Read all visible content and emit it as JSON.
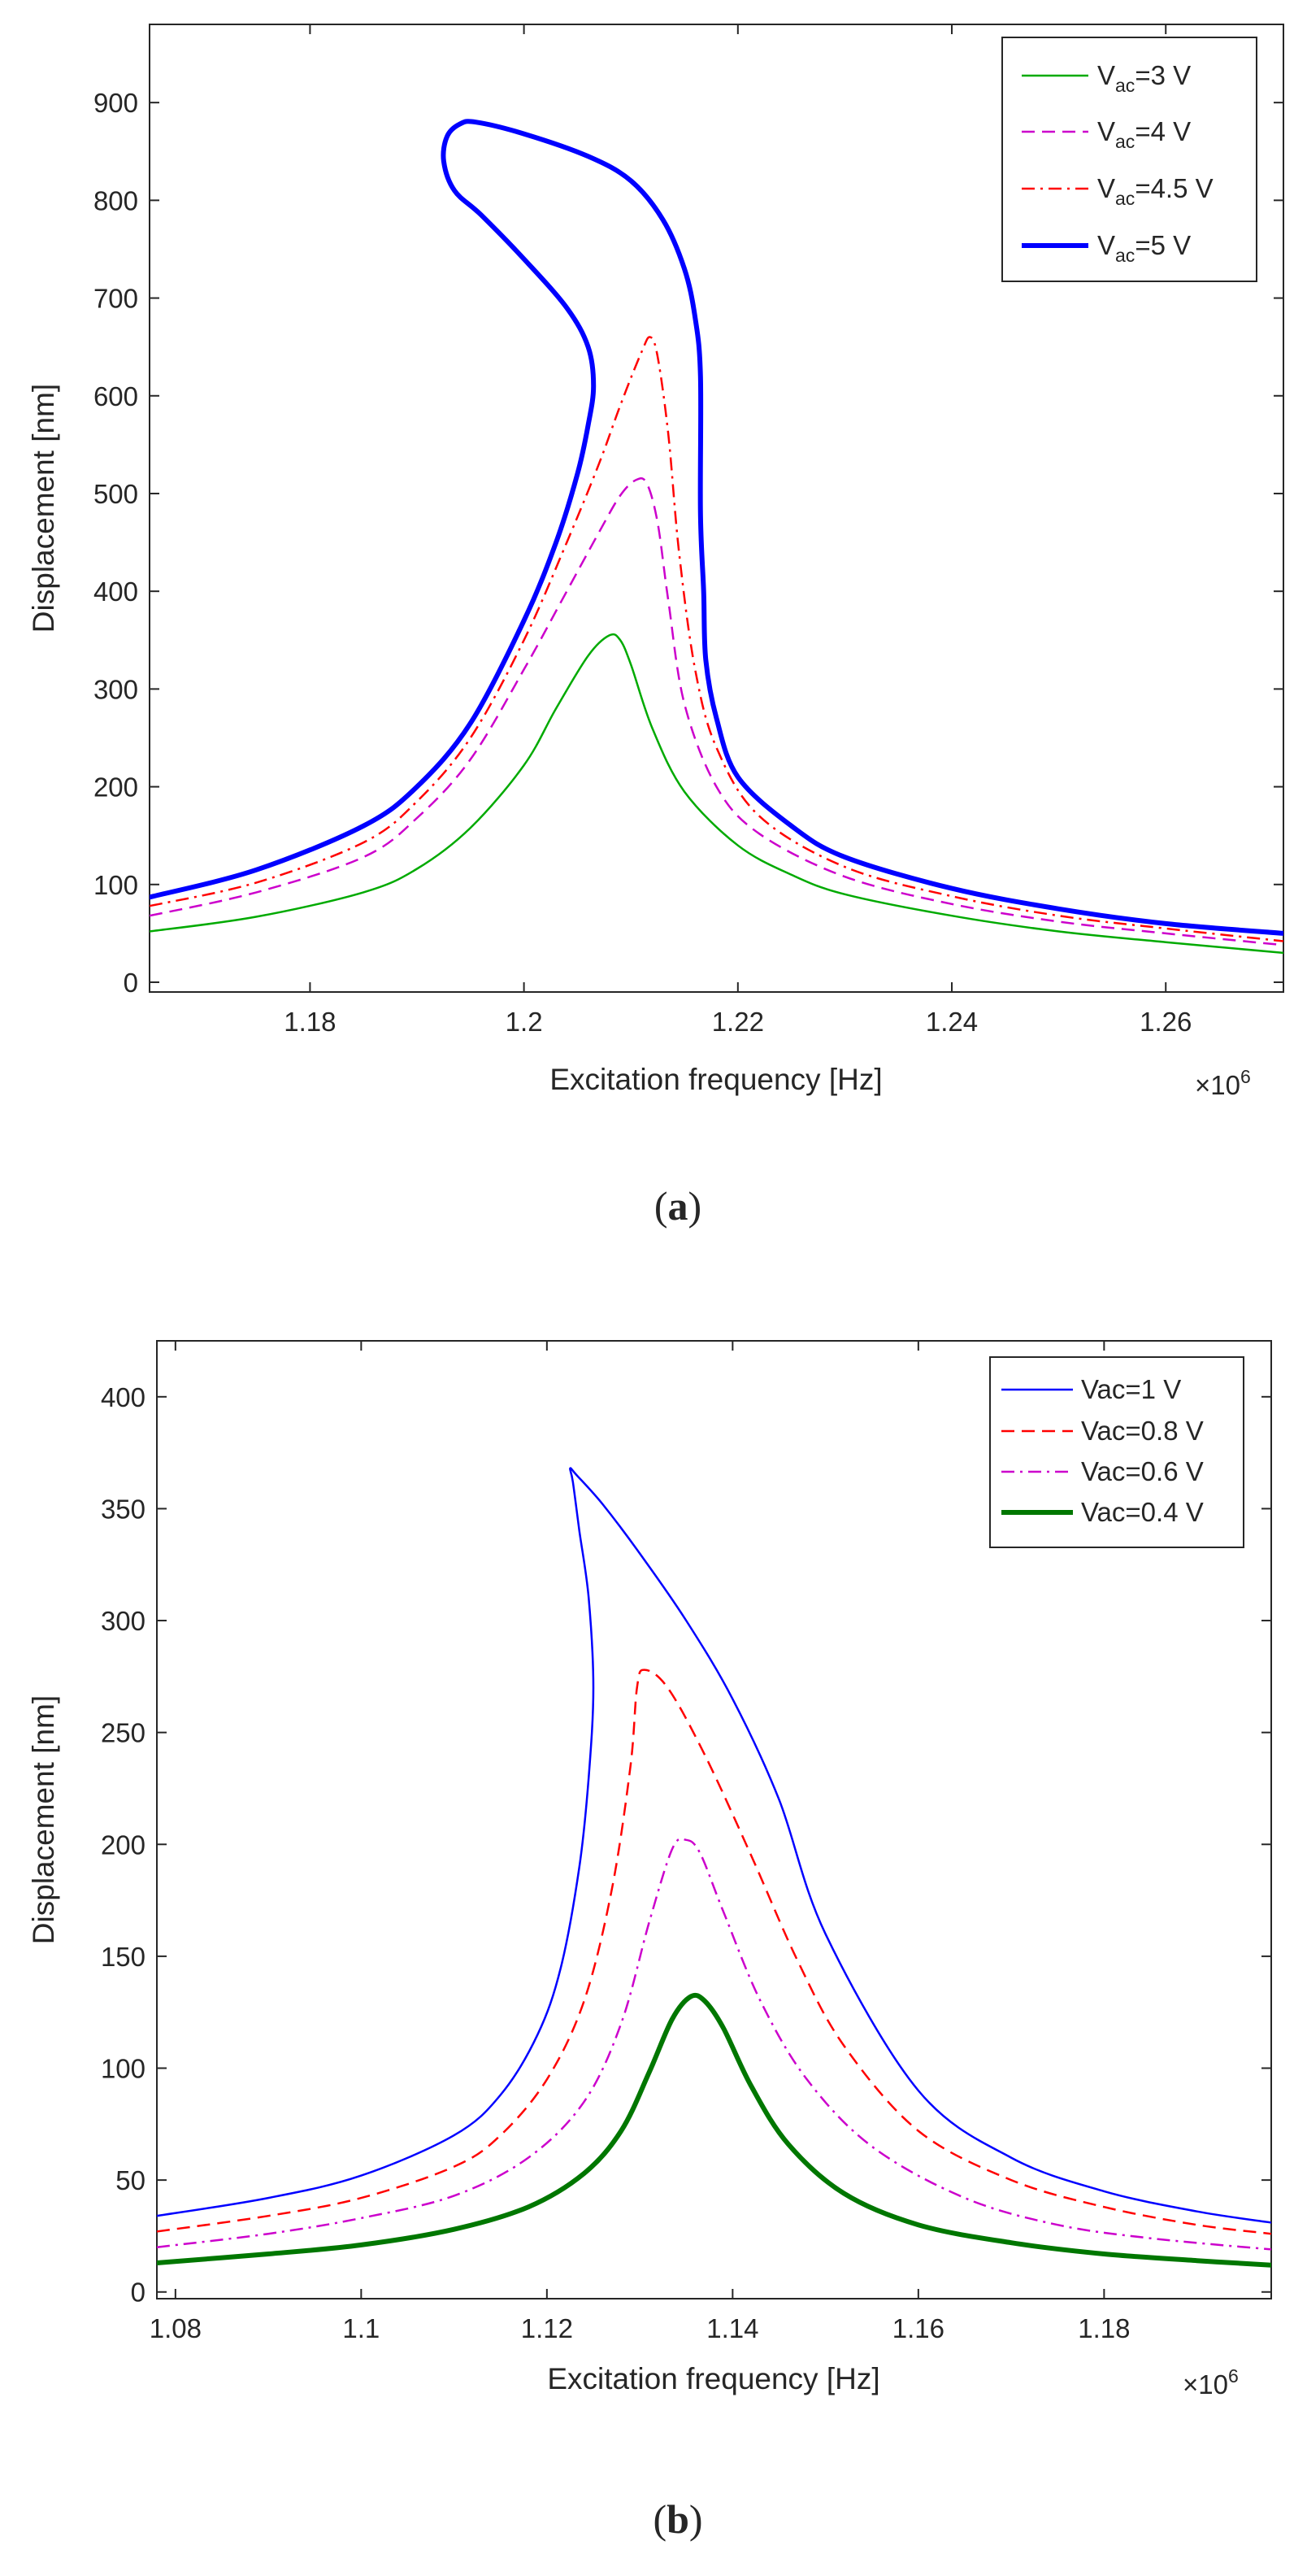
{
  "chart_data": [
    {
      "panel": "(a)",
      "panel_paren_open": "(",
      "panel_letter": "a",
      "panel_paren_close": ")",
      "type": "line",
      "xlabel": "Excitation frequency [Hz]",
      "ylabel": "Displacement [nm]",
      "x_multiplier_times": "×10",
      "x_multiplier_exp": "6",
      "xlim": [
        1.165,
        1.271
      ],
      "ylim": [
        -10,
        980
      ],
      "xticks": [
        1.18,
        1.2,
        1.22,
        1.24,
        1.26
      ],
      "xtick_labels": [
        "1.18",
        "1.2",
        "1.22",
        "1.24",
        "1.26"
      ],
      "yticks": [
        0,
        100,
        200,
        300,
        400,
        500,
        600,
        700,
        800,
        900
      ],
      "ytick_labels": [
        "0",
        "100",
        "200",
        "300",
        "400",
        "500",
        "600",
        "700",
        "800",
        "900"
      ],
      "grid": false,
      "legend_position": "top-right",
      "series": [
        {
          "name": "Vac=3 V",
          "legend_main": "V",
          "legend_sub": "ac",
          "legend_rest": "=3 V",
          "color": "#00aa00",
          "style": "solid",
          "width": 2.5,
          "x": [
            1.165,
            1.175,
            1.185,
            1.19,
            1.195,
            1.2,
            1.203,
            1.206,
            1.208,
            1.209,
            1.21,
            1.212,
            1.215,
            1.22,
            1.225,
            1.23,
            1.24,
            1.25,
            1.26,
            1.271
          ],
          "y": [
            52,
            67,
            92,
            116,
            158,
            222,
            280,
            334,
            355,
            350,
            325,
            260,
            195,
            140,
            110,
            90,
            68,
            52,
            41,
            30
          ]
        },
        {
          "name": "Vac=4 V",
          "legend_main": "V",
          "legend_sub": "ac",
          "legend_rest": "=4 V",
          "color": "#cc00cc",
          "style": "dashed",
          "width": 2.5,
          "x": [
            1.165,
            1.175,
            1.185,
            1.19,
            1.195,
            1.2,
            1.204,
            1.207,
            1.209,
            1.2105,
            1.2115,
            1.2125,
            1.2135,
            1.215,
            1.218,
            1.222,
            1.23,
            1.24,
            1.25,
            1.26,
            1.271
          ],
          "y": [
            68,
            92,
            128,
            168,
            228,
            320,
            400,
            460,
            498,
            514,
            510,
            470,
            390,
            285,
            200,
            152,
            108,
            80,
            62,
            50,
            38
          ]
        },
        {
          "name": "Vac=4.5 V",
          "legend_main": "V",
          "legend_sub": "ac",
          "legend_rest": "=4.5 V",
          "color": "#ff0000",
          "style": "dashdot",
          "width": 2.5,
          "x": [
            1.165,
            1.175,
            1.185,
            1.19,
            1.195,
            1.2,
            1.204,
            1.207,
            1.209,
            1.211,
            1.2118,
            1.2125,
            1.2135,
            1.2145,
            1.216,
            1.218,
            1.222,
            1.23,
            1.24,
            1.25,
            1.26,
            1.271
          ],
          "y": [
            78,
            102,
            143,
            185,
            250,
            350,
            450,
            530,
            590,
            645,
            660,
            640,
            560,
            440,
            320,
            240,
            170,
            118,
            88,
            68,
            55,
            42
          ]
        },
        {
          "name": "Vac=5 V",
          "legend_main": "V",
          "legend_sub": "ac",
          "legend_rest": "=5 V",
          "color": "#0000ff",
          "style": "solid",
          "width": 6,
          "x": [
            1.165,
            1.175,
            1.185,
            1.19,
            1.195,
            1.2,
            1.203,
            1.205,
            1.206,
            1.2065,
            1.206,
            1.204,
            1.2,
            1.196,
            1.1935,
            1.1925,
            1.1928,
            1.194,
            1.1955,
            1.2,
            1.206,
            1.21,
            1.213,
            1.215,
            1.216,
            1.2165,
            1.2165,
            1.2168,
            1.217,
            1.218,
            1.22,
            1.225,
            1.23,
            1.24,
            1.25,
            1.26,
            1.271
          ],
          "y": [
            87,
            115,
            160,
            200,
            265,
            370,
            450,
            520,
            570,
            610,
            650,
            690,
            740,
            785,
            810,
            840,
            865,
            878,
            880,
            868,
            845,
            820,
            780,
            730,
            680,
            620,
            480,
            400,
            330,
            270,
            210,
            160,
            128,
            96,
            75,
            60,
            50
          ]
        }
      ]
    },
    {
      "panel": "(b)",
      "panel_paren_open": "(",
      "panel_letter": "b",
      "panel_paren_close": ")",
      "type": "line",
      "xlabel": "Excitation frequency [Hz]",
      "ylabel": "Displacement [nm]",
      "x_multiplier_times": "×10",
      "x_multiplier_exp": "6",
      "xlim": [
        1.078,
        1.198
      ],
      "ylim": [
        -3,
        425
      ],
      "xticks": [
        1.08,
        1.1,
        1.12,
        1.14,
        1.16,
        1.18
      ],
      "xtick_labels": [
        "1.08",
        "1.1",
        "1.12",
        "1.14",
        "1.16",
        "1.18"
      ],
      "yticks": [
        0,
        50,
        100,
        150,
        200,
        250,
        300,
        350,
        400
      ],
      "ytick_labels": [
        "0",
        "50",
        "100",
        "150",
        "200",
        "250",
        "300",
        "350",
        "400"
      ],
      "grid": false,
      "legend_position": "top-right",
      "series": [
        {
          "name": "Vac=1 V",
          "color": "#0000ff",
          "style": "solid",
          "width": 2.5,
          "x": [
            1.078,
            1.09,
            1.1,
            1.11,
            1.115,
            1.119,
            1.1215,
            1.1235,
            1.1245,
            1.125,
            1.1245,
            1.1235,
            1.1228,
            1.1225,
            1.1232,
            1.126,
            1.13,
            1.135,
            1.14,
            1.145,
            1.15,
            1.16,
            1.17,
            1.18,
            1.19,
            1.198
          ],
          "y": [
            34,
            42,
            52,
            70,
            88,
            115,
            145,
            190,
            230,
            270,
            310,
            340,
            362,
            368,
            365,
            352,
            330,
            300,
            265,
            220,
            160,
            90,
            60,
            45,
            36,
            31
          ]
        },
        {
          "name": "Vac=0.8 V",
          "color": "#ff0000",
          "style": "dashed",
          "width": 2.5,
          "x": [
            1.078,
            1.09,
            1.1,
            1.11,
            1.115,
            1.12,
            1.124,
            1.127,
            1.129,
            1.1297,
            1.1305,
            1.133,
            1.137,
            1.142,
            1.147,
            1.152,
            1.16,
            1.17,
            1.18,
            1.19,
            1.198
          ],
          "y": [
            27,
            34,
            42,
            56,
            70,
            95,
            130,
            180,
            235,
            270,
            278,
            270,
            240,
            195,
            148,
            110,
            72,
            50,
            38,
            30,
            26
          ]
        },
        {
          "name": "Vac=0.6 V",
          "color": "#cc00cc",
          "style": "dashdot",
          "width": 2.5,
          "x": [
            1.078,
            1.09,
            1.1,
            1.11,
            1.118,
            1.124,
            1.128,
            1.131,
            1.1335,
            1.135,
            1.1365,
            1.139,
            1.143,
            1.148,
            1.155,
            1.165,
            1.175,
            1.185,
            1.198
          ],
          "y": [
            20,
            26,
            33,
            43,
            60,
            85,
            120,
            165,
            198,
            202,
            196,
            170,
            130,
            95,
            65,
            42,
            30,
            24,
            19
          ]
        },
        {
          "name": "Vac=0.4 V",
          "color": "#007700",
          "style": "solid",
          "width": 6,
          "x": [
            1.078,
            1.09,
            1.1,
            1.11,
            1.118,
            1.124,
            1.128,
            1.131,
            1.1335,
            1.1355,
            1.137,
            1.139,
            1.142,
            1.146,
            1.152,
            1.16,
            1.17,
            1.18,
            1.19,
            1.198
          ],
          "y": [
            13,
            17,
            21,
            28,
            38,
            53,
            72,
            98,
            122,
            132,
            130,
            118,
            92,
            66,
            44,
            30,
            22,
            17,
            14,
            12
          ]
        }
      ]
    }
  ]
}
